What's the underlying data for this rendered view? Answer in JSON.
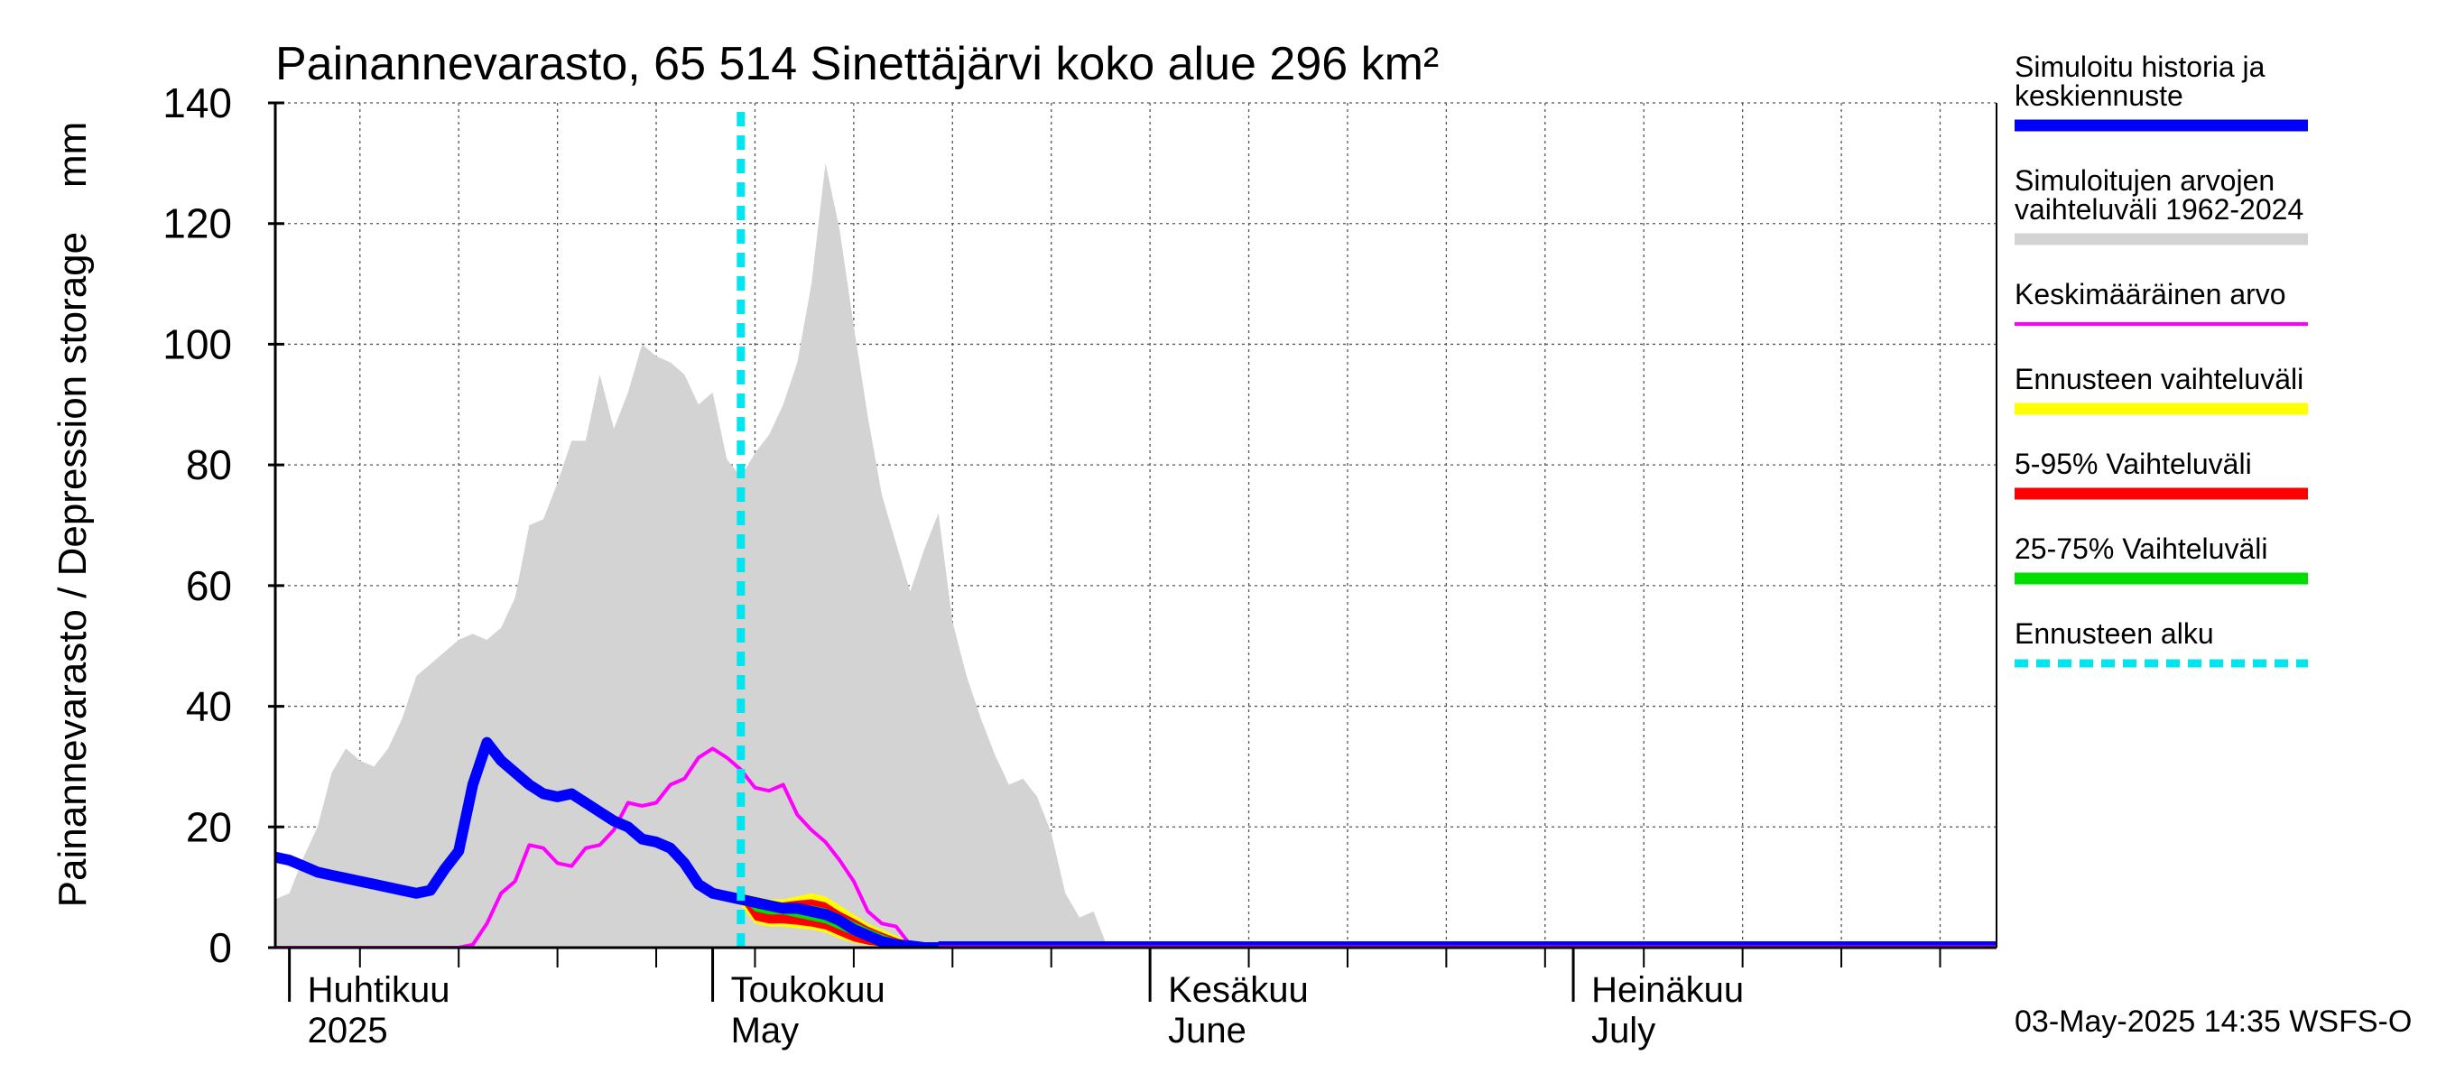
{
  "chart_data": {
    "type": "area",
    "title": "Painannevarasto, 65 514 Sinettäjärvi koko alue 296 km²",
    "ylabel": "Painannevarasto / Depression storage    mm",
    "ylim": [
      0,
      140
    ],
    "yticks": [
      0,
      20,
      40,
      60,
      80,
      100,
      120,
      140
    ],
    "xlim": [
      "2025-03-31",
      "2025-07-31"
    ],
    "grid": true,
    "legend_position": "right",
    "month_labels": [
      {
        "date": "2025-04-01",
        "line1": "Huhtikuu",
        "line2": "2025"
      },
      {
        "date": "2025-05-01",
        "line1": "Toukokuu",
        "line2": "May"
      },
      {
        "date": "2025-06-01",
        "line1": "Kesäkuu",
        "line2": "June"
      },
      {
        "date": "2025-07-01",
        "line1": "Heinäkuu",
        "line2": "July"
      }
    ],
    "forecast_start": "2025-05-03",
    "series": [
      {
        "name": "Simuloitujen arvojen vaihteluväli 1962-2024",
        "kind": "band",
        "color": "#d3d3d3",
        "x": [
          "2025-03-31",
          "2025-04-01",
          "2025-04-02",
          "2025-04-03",
          "2025-04-04",
          "2025-04-05",
          "2025-04-06",
          "2025-04-07",
          "2025-04-08",
          "2025-04-09",
          "2025-04-10",
          "2025-04-11",
          "2025-04-12",
          "2025-04-13",
          "2025-04-14",
          "2025-04-15",
          "2025-04-16",
          "2025-04-17",
          "2025-04-18",
          "2025-04-19",
          "2025-04-20",
          "2025-04-21",
          "2025-04-22",
          "2025-04-23",
          "2025-04-24",
          "2025-04-25",
          "2025-04-26",
          "2025-04-27",
          "2025-04-28",
          "2025-04-29",
          "2025-04-30",
          "2025-05-01",
          "2025-05-02",
          "2025-05-03",
          "2025-05-04",
          "2025-05-05",
          "2025-05-06",
          "2025-05-07",
          "2025-05-08",
          "2025-05-09",
          "2025-05-10",
          "2025-05-11",
          "2025-05-12",
          "2025-05-13",
          "2025-05-14",
          "2025-05-15",
          "2025-05-16",
          "2025-05-17",
          "2025-05-18",
          "2025-05-19",
          "2025-05-20",
          "2025-05-21",
          "2025-05-22",
          "2025-05-23",
          "2025-05-24",
          "2025-05-25",
          "2025-05-26",
          "2025-05-27",
          "2025-05-28",
          "2025-05-29",
          "2025-05-30",
          "2025-05-31"
        ],
        "upper": [
          8,
          9,
          15,
          20,
          29,
          33,
          31,
          30,
          33,
          38,
          45,
          47,
          49,
          51,
          52,
          51,
          53,
          58,
          70,
          71,
          77,
          84,
          84,
          95,
          86,
          92,
          100,
          98,
          97,
          95,
          90,
          92,
          81,
          78,
          82,
          85,
          90,
          97,
          110,
          130,
          119,
          103,
          88,
          75,
          67,
          59,
          66,
          72,
          54,
          45,
          38,
          32,
          27,
          28,
          25,
          19,
          9,
          5,
          6,
          0,
          0,
          0
        ],
        "lower": [
          0,
          0,
          0,
          0,
          0,
          0,
          0,
          0,
          0,
          0,
          0,
          0,
          0,
          0,
          0,
          0,
          0,
          0,
          0,
          0,
          0,
          0,
          0,
          0,
          0,
          0,
          0,
          0,
          0,
          0,
          0,
          0,
          0,
          0,
          0,
          0,
          0,
          0,
          0,
          0,
          0,
          0,
          0,
          0,
          0,
          0,
          0,
          0,
          0,
          0,
          0,
          0,
          0,
          0,
          0,
          0,
          0,
          0,
          0,
          0,
          0,
          0
        ]
      },
      {
        "name": "Ennusteen vaihteluväli",
        "kind": "band",
        "color": "#ffff00",
        "x": [
          "2025-05-03",
          "2025-05-04",
          "2025-05-05",
          "2025-05-06",
          "2025-05-07",
          "2025-05-08",
          "2025-05-09",
          "2025-05-10",
          "2025-05-11",
          "2025-05-12",
          "2025-05-13",
          "2025-05-14",
          "2025-05-15",
          "2025-05-16",
          "2025-05-17",
          "2025-05-18"
        ],
        "upper": [
          9,
          8.5,
          8,
          8,
          8.5,
          9,
          8.5,
          7,
          5.5,
          4,
          3,
          2,
          1,
          0.5,
          0,
          0
        ],
        "lower": [
          7,
          4,
          3.5,
          3.5,
          3.2,
          3,
          2.5,
          1.5,
          0.8,
          0.4,
          0.2,
          0,
          0,
          0,
          0,
          0
        ]
      },
      {
        "name": "5-95% Vaihteluväli",
        "kind": "band",
        "color": "#ff0000",
        "x": [
          "2025-05-03",
          "2025-05-04",
          "2025-05-05",
          "2025-05-06",
          "2025-05-07",
          "2025-05-08",
          "2025-05-09",
          "2025-05-10",
          "2025-05-11",
          "2025-05-12",
          "2025-05-13",
          "2025-05-14",
          "2025-05-15",
          "2025-05-16",
          "2025-05-17",
          "2025-05-18"
        ],
        "upper": [
          8.8,
          8,
          7.5,
          7.5,
          7.8,
          8,
          7.5,
          6,
          4.8,
          3.5,
          2.5,
          1.6,
          0.9,
          0.4,
          0,
          0
        ],
        "lower": [
          8,
          4.5,
          4,
          4,
          3.8,
          3.5,
          3,
          2,
          1,
          0.5,
          0.2,
          0,
          0,
          0,
          0,
          0
        ]
      },
      {
        "name": "25-75% Vaihteluväli",
        "kind": "band",
        "color": "#00dd00",
        "x": [
          "2025-05-03",
          "2025-05-04",
          "2025-05-05",
          "2025-05-06",
          "2025-05-07",
          "2025-05-08",
          "2025-05-09",
          "2025-05-10",
          "2025-05-11",
          "2025-05-12",
          "2025-05-13",
          "2025-05-14",
          "2025-05-15",
          "2025-05-16",
          "2025-05-17",
          "2025-05-18"
        ],
        "upper": [
          8.6,
          7.8,
          7.3,
          7,
          7,
          7,
          6.5,
          5.5,
          4.3,
          3.2,
          2.2,
          1.4,
          0.8,
          0.3,
          0,
          0
        ],
        "lower": [
          8.3,
          6,
          5.5,
          5.5,
          5,
          4.5,
          4,
          3,
          2,
          1.2,
          0.6,
          0.2,
          0,
          0,
          0,
          0
        ]
      },
      {
        "name": "Keskimääräinen arvo",
        "kind": "line",
        "color": "#ff00ff",
        "x": [
          "2025-03-31",
          "2025-04-13",
          "2025-04-14",
          "2025-04-15",
          "2025-04-16",
          "2025-04-17",
          "2025-04-18",
          "2025-04-19",
          "2025-04-20",
          "2025-04-21",
          "2025-04-22",
          "2025-04-23",
          "2025-04-24",
          "2025-04-25",
          "2025-04-26",
          "2025-04-27",
          "2025-04-28",
          "2025-04-29",
          "2025-04-30",
          "2025-05-01",
          "2025-05-02",
          "2025-05-03",
          "2025-05-04",
          "2025-05-05",
          "2025-05-06",
          "2025-05-07",
          "2025-05-08",
          "2025-05-09",
          "2025-05-10",
          "2025-05-11",
          "2025-05-12",
          "2025-05-13",
          "2025-05-14",
          "2025-05-15",
          "2025-05-16",
          "2025-05-17",
          "2025-05-18",
          "2025-07-31"
        ],
        "values": [
          0,
          0,
          0.5,
          4,
          9,
          11,
          17,
          16.5,
          14,
          13.5,
          16.5,
          17,
          19.5,
          24,
          23.5,
          24,
          27,
          28,
          31.5,
          33,
          31.5,
          29.5,
          26.5,
          26,
          27,
          22,
          19.5,
          17.5,
          14.5,
          11,
          6,
          4,
          3.5,
          0.5,
          0,
          0,
          0,
          0
        ]
      },
      {
        "name": "Simuloitu historia ja keskiennuste",
        "kind": "line",
        "color": "#0000ff",
        "x": [
          "2025-03-31",
          "2025-04-01",
          "2025-04-02",
          "2025-04-03",
          "2025-04-04",
          "2025-04-05",
          "2025-04-06",
          "2025-04-07",
          "2025-04-08",
          "2025-04-09",
          "2025-04-10",
          "2025-04-11",
          "2025-04-12",
          "2025-04-13",
          "2025-04-14",
          "2025-04-15",
          "2025-04-16",
          "2025-04-17",
          "2025-04-18",
          "2025-04-19",
          "2025-04-20",
          "2025-04-21",
          "2025-04-22",
          "2025-04-23",
          "2025-04-24",
          "2025-04-25",
          "2025-04-26",
          "2025-04-27",
          "2025-04-28",
          "2025-04-29",
          "2025-04-30",
          "2025-05-01",
          "2025-05-02",
          "2025-05-03",
          "2025-05-04",
          "2025-05-05",
          "2025-05-06",
          "2025-05-07",
          "2025-05-08",
          "2025-05-09",
          "2025-05-10",
          "2025-05-11",
          "2025-05-12",
          "2025-05-13",
          "2025-05-14",
          "2025-05-15",
          "2025-05-16",
          "2025-05-17",
          "2025-05-18",
          "2025-07-31"
        ],
        "values": [
          15,
          14.5,
          13.5,
          12.5,
          12,
          11.5,
          11,
          10.5,
          10,
          9.5,
          9,
          9.5,
          13,
          16,
          27,
          34,
          31,
          29,
          27,
          25.5,
          25,
          25.5,
          24,
          22.5,
          21,
          20,
          18,
          17.5,
          16.5,
          14,
          10.5,
          9,
          8.5,
          8,
          7.5,
          7,
          6.5,
          6.5,
          6,
          5.5,
          4.5,
          3,
          2,
          1,
          0.5,
          0.3,
          0,
          0,
          0,
          0
        ]
      }
    ],
    "legend": [
      {
        "label": "Simuloitu historia ja keskiennuste",
        "color": "#0000ff",
        "style": "thick"
      },
      {
        "label": "Simuloitujen arvojen vaihteluväli 1962-2024",
        "color": "#d3d3d3",
        "style": "thick"
      },
      {
        "label": "Keskimääräinen arvo",
        "color": "#ff00ff",
        "style": "thin"
      },
      {
        "label": "Ennusteen vaihteluväli",
        "color": "#ffff00",
        "style": "thick"
      },
      {
        "label": "5-95% Vaihteluväli",
        "color": "#ff0000",
        "style": "thick"
      },
      {
        "label": "25-75% Vaihteluväli",
        "color": "#00dd00",
        "style": "thick"
      },
      {
        "label": "Ennusteen alku",
        "color": "#00e5ee",
        "style": "dashed"
      }
    ],
    "footer": "03-May-2025 14:35 WSFS-O"
  }
}
